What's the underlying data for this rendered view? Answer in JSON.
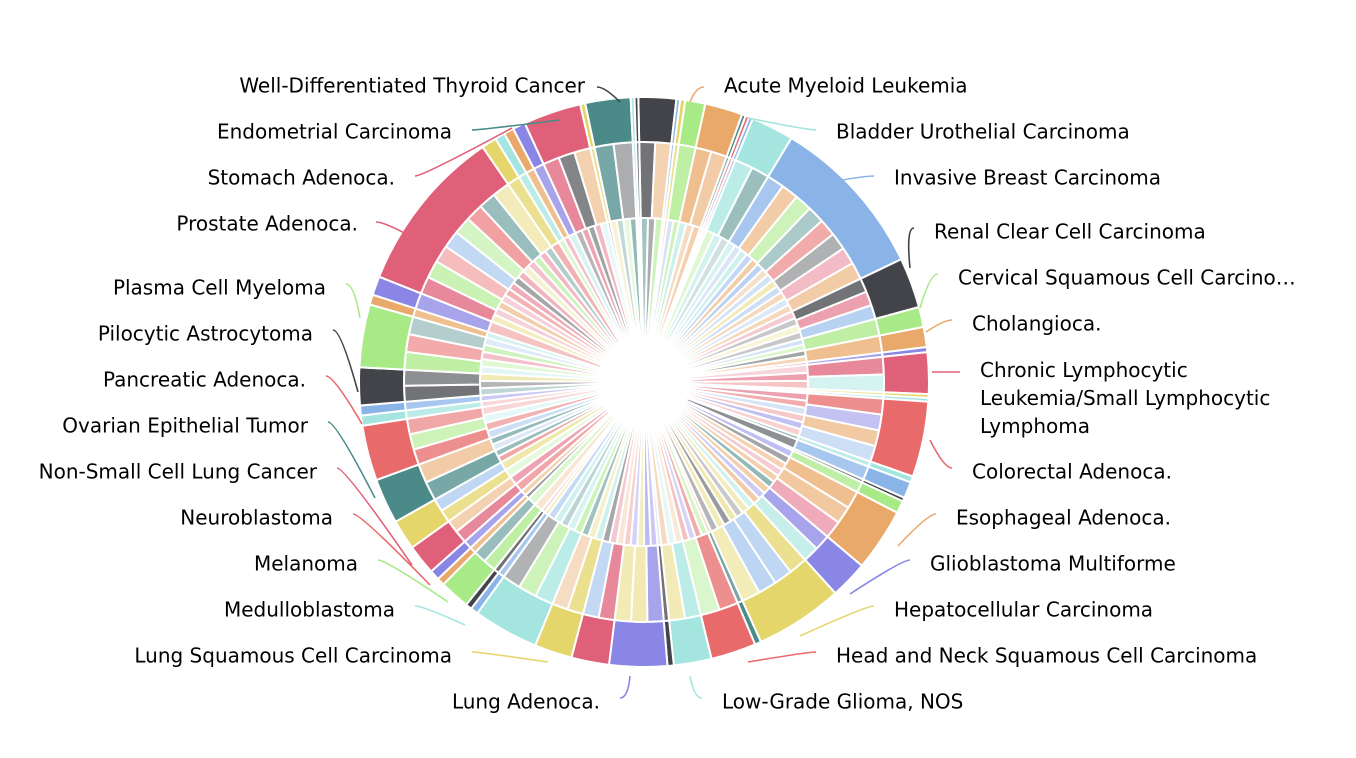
{
  "chart_data": {
    "type": "sunburst",
    "title": "",
    "legend": "none",
    "outer_ring": [
      {
        "name": "Well-Differentiated Thyroid Cancer",
        "color": "#424449",
        "value": 3.0
      },
      {
        "name": "",
        "color": "#8ab4e8",
        "value": 0.3
      },
      {
        "name": "",
        "color": "#e4d66a",
        "value": 0.4
      },
      {
        "name": "",
        "color": "#a8ea86",
        "value": 1.6
      },
      {
        "name": "Acute Myeloid Leukemia",
        "color": "#e9a96a",
        "value": 3.0
      },
      {
        "name": "",
        "color": "#4a8a88",
        "value": 0.3
      },
      {
        "name": "",
        "color": "#e86a6a",
        "value": 0.3
      },
      {
        "name": "",
        "color": "#8ab4e8",
        "value": 0.3
      },
      {
        "name": "Bladder Urothelial Carcinoma",
        "color": "#a5e5e0",
        "value": 3.4
      },
      {
        "name": "Invasive Breast Carcinoma",
        "color": "#8ab4e8",
        "value": 13.0
      },
      {
        "name": "Renal Clear Cell Carcinoma",
        "color": "#424449",
        "value": 4.0
      },
      {
        "name": "Cervical Squamous Cell Carcinoma",
        "color": "#a8ea86",
        "value": 1.6
      },
      {
        "name": "Cholangioca.",
        "color": "#e9a96a",
        "value": 1.6
      },
      {
        "name": "",
        "color": "#8a86e6",
        "value": 0.4
      },
      {
        "name": "Chronic Lymphocytic Leukemia/Small Lymphocytic Lymphoma",
        "color": "#e0607a",
        "value": 3.3
      },
      {
        "name": "",
        "color": "#e4d66a",
        "value": 0.3
      },
      {
        "name": "",
        "color": "#a5e5e0",
        "value": 0.3
      },
      {
        "name": "Colorectal Adenoca.",
        "color": "#e86a6a",
        "value": 6.0
      },
      {
        "name": "",
        "color": "#a5e5e0",
        "value": 0.5
      },
      {
        "name": "",
        "color": "#8ab4e8",
        "value": 1.3
      },
      {
        "name": "",
        "color": "#424449",
        "value": 0.3
      },
      {
        "name": "",
        "color": "#a8ea86",
        "value": 1.0
      },
      {
        "name": "Esophageal Adenoca.",
        "color": "#e9a96a",
        "value": 5.0
      },
      {
        "name": "Glioblastoma Multiforme",
        "color": "#8a86e6",
        "value": 3.0
      },
      {
        "name": "Hepatocellular Carcinoma",
        "color": "#e4d66a",
        "value": 7.0
      },
      {
        "name": "",
        "color": "#4a8a88",
        "value": 0.5
      },
      {
        "name": "Head and Neck Squamous Cell Carcinoma",
        "color": "#e86a6a",
        "value": 3.6
      },
      {
        "name": "Low-Grade Glioma, NOS",
        "color": "#a5e5e0",
        "value": 3.0
      },
      {
        "name": "",
        "color": "#424449",
        "value": 0.5
      },
      {
        "name": "Lung Adenoca.",
        "color": "#8a86e6",
        "value": 4.6
      },
      {
        "name": "",
        "color": "#e0607a",
        "value": 3.0
      },
      {
        "name": "Lung Squamous Cell Carcinoma",
        "color": "#e4d66a",
        "value": 3.0
      },
      {
        "name": "",
        "color": "#a5e5e0",
        "value": 5.2
      },
      {
        "name": "",
        "color": "#8ab4e8",
        "value": 0.6
      },
      {
        "name": "Medulloblastoma",
        "color": "#424449",
        "value": 0.5
      },
      {
        "name": "Melanoma",
        "color": "#a8ea86",
        "value": 2.4
      },
      {
        "name": "",
        "color": "#e9a96a",
        "value": 0.6
      },
      {
        "name": "Neuroblastoma",
        "color": "#8a86e6",
        "value": 0.8
      },
      {
        "name": "",
        "color": "#e0607a",
        "value": 2.4
      },
      {
        "name": "",
        "color": "#e4d66a",
        "value": 2.4
      },
      {
        "name": "Non-Small Cell Lung Cancer",
        "color": "#4a8a88",
        "value": 3.6
      },
      {
        "name": "Ovarian Epithelial Tumor",
        "color": "#e86a6a",
        "value": 4.4
      },
      {
        "name": "",
        "color": "#a5e5e0",
        "value": 0.8
      },
      {
        "name": "Pancreatic Adenoca.",
        "color": "#8ab4e8",
        "value": 0.8
      },
      {
        "name": "Pilocytic Astrocytoma",
        "color": "#424449",
        "value": 3.0
      },
      {
        "name": "Plasma Cell Myeloma",
        "color": "#a8ea86",
        "value": 5.0
      },
      {
        "name": "",
        "color": "#e9a96a",
        "value": 0.8
      },
      {
        "name": "",
        "color": "#8a86e6",
        "value": 1.5
      },
      {
        "name": "Prostate Adenoca.",
        "color": "#e0607a",
        "value": 13.2
      },
      {
        "name": "",
        "color": "#e4d66a",
        "value": 1.2
      },
      {
        "name": "",
        "color": "#a5e5e0",
        "value": 0.8
      },
      {
        "name": "",
        "color": "#e9a96a",
        "value": 0.8
      },
      {
        "name": "Stomach Adenoca.",
        "color": "#8a86e6",
        "value": 1.0
      },
      {
        "name": "",
        "color": "#e0607a",
        "value": 4.6
      },
      {
        "name": "",
        "color": "#e4d66a",
        "value": 0.4
      },
      {
        "name": "Endometrial Carcinoma",
        "color": "#4a8a88",
        "value": 3.6
      },
      {
        "name": "",
        "color": "#a5e5e0",
        "value": 0.3
      },
      {
        "name": "",
        "color": "#424449",
        "value": 0.3
      }
    ],
    "labels": [
      {
        "text": "Well-Differentiated Thyroid Cancer",
        "color": "#424449"
      },
      {
        "text": "Endometrial Carcinoma",
        "color": "#4a8a88"
      },
      {
        "text": "Stomach Adenoca.",
        "color": "#e0607a"
      },
      {
        "text": "Prostate Adenoca.",
        "color": "#e0607a"
      },
      {
        "text": "Plasma Cell Myeloma",
        "color": "#a8ea86"
      },
      {
        "text": "Pilocytic Astrocytoma",
        "color": "#424449"
      },
      {
        "text": "Pancreatic Adenoca.",
        "color": "#e86a6a"
      },
      {
        "text": "Ovarian Epithelial Tumor",
        "color": "#4a8a88"
      },
      {
        "text": "Non-Small Cell Lung Cancer",
        "color": "#e0607a"
      },
      {
        "text": "Neuroblastoma",
        "color": "#e86a6a"
      },
      {
        "text": "Melanoma",
        "color": "#a8ea86"
      },
      {
        "text": "Medulloblastoma",
        "color": "#a5e5e0"
      },
      {
        "text": "Lung Squamous Cell Carcinoma",
        "color": "#e4d66a"
      },
      {
        "text": "Lung Adenoca.",
        "color": "#8a86e6"
      },
      {
        "text": "Low-Grade Glioma, NOS",
        "color": "#a5e5e0"
      },
      {
        "text": "Head and Neck Squamous Cell Carcinoma",
        "color": "#e86a6a"
      },
      {
        "text": "Hepatocellular Carcinoma",
        "color": "#e4d66a"
      },
      {
        "text": "Glioblastoma Multiforme",
        "color": "#8a86e6"
      },
      {
        "text": "Esophageal Adenoca.",
        "color": "#e9a96a"
      },
      {
        "text": "Colorectal Adenoca.",
        "color": "#e86a6a"
      },
      {
        "text": "Chronic Lymphocytic Leukemia/Small Lymphocytic Lymphoma",
        "lines": [
          "Chronic Lymphocytic",
          "Leukemia/Small Lymphocytic",
          "Lymphoma"
        ],
        "color": "#e0607a"
      },
      {
        "text": "Cholangioca.",
        "color": "#e9a96a"
      },
      {
        "text": "Cervical Squamous Cell Carcino…",
        "color": "#a8ea86"
      },
      {
        "text": "Renal Clear Cell Carcinoma",
        "color": "#424449"
      },
      {
        "text": "Invasive Breast Carcinoma",
        "color": "#8ab4e8"
      },
      {
        "text": "Bladder Urothelial Carcinoma",
        "color": "#a5e5e0"
      },
      {
        "text": "Acute Myeloid Leukemia",
        "color": "#e9a96a"
      }
    ],
    "palette": [
      "#424449",
      "#4a8a88",
      "#e0607a",
      "#e86a6a",
      "#e9a96a",
      "#a8ea86",
      "#a5e5e0",
      "#8ab4e8",
      "#8a86e6",
      "#e4d66a"
    ]
  }
}
